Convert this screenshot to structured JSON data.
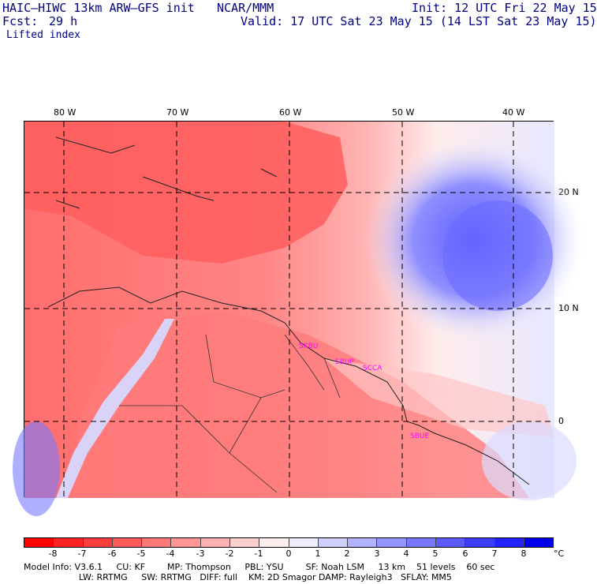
{
  "header": {
    "model_title": "HAIC–HIWC 13km ARW–GFS init",
    "org": "NCAR/MMM",
    "init": "Init: 12 UTC Fri 22 May 15",
    "fcst_label": "Fcst:",
    "fcst_value": "29 h",
    "valid": "Valid: 17 UTC Sat 23 May 15 (14 LST Sat 23 May 15)",
    "field": "Lifted index"
  },
  "map": {
    "longitude_labels": [
      "80 W",
      "70 W",
      "60 W",
      "50 W",
      "40 W"
    ],
    "latitude_labels": [
      "20 N",
      "10 N",
      "0"
    ],
    "site_labels": [
      "SKBU",
      "SBUP",
      "SCCA",
      "SBUE"
    ]
  },
  "colorbar": {
    "tick_labels": [
      "-8",
      "-7",
      "-6",
      "-5",
      "-4",
      "-3",
      "-2",
      "-1",
      "0",
      "1",
      "2",
      "3",
      "4",
      "5",
      "6",
      "7",
      "8"
    ],
    "unit": "°C",
    "colors": [
      "#ff0000",
      "#ff2323",
      "#ff3d3d",
      "#ff5a5a",
      "#ff7777",
      "#ff9595",
      "#ffb2b2",
      "#ffd0d0",
      "#ffeeee",
      "#eeeeff",
      "#d0d0ff",
      "#b2b2ff",
      "#9595ff",
      "#7777ff",
      "#5a5aff",
      "#3d3dff",
      "#2323ff",
      "#0000ee"
    ]
  },
  "model_info": {
    "line1": "Model Info: V3.6.1     CU: KF        MP: Thompson     PBL: YSU        SF: Noah LSM     13 km    51 levels    60 sec",
    "line2": "                    LW: RRTMG     SW: RRTMG   DIFF: full    KM: 2D Smagor DAMP: Rayleigh3   SFLAY: MM5"
  }
}
